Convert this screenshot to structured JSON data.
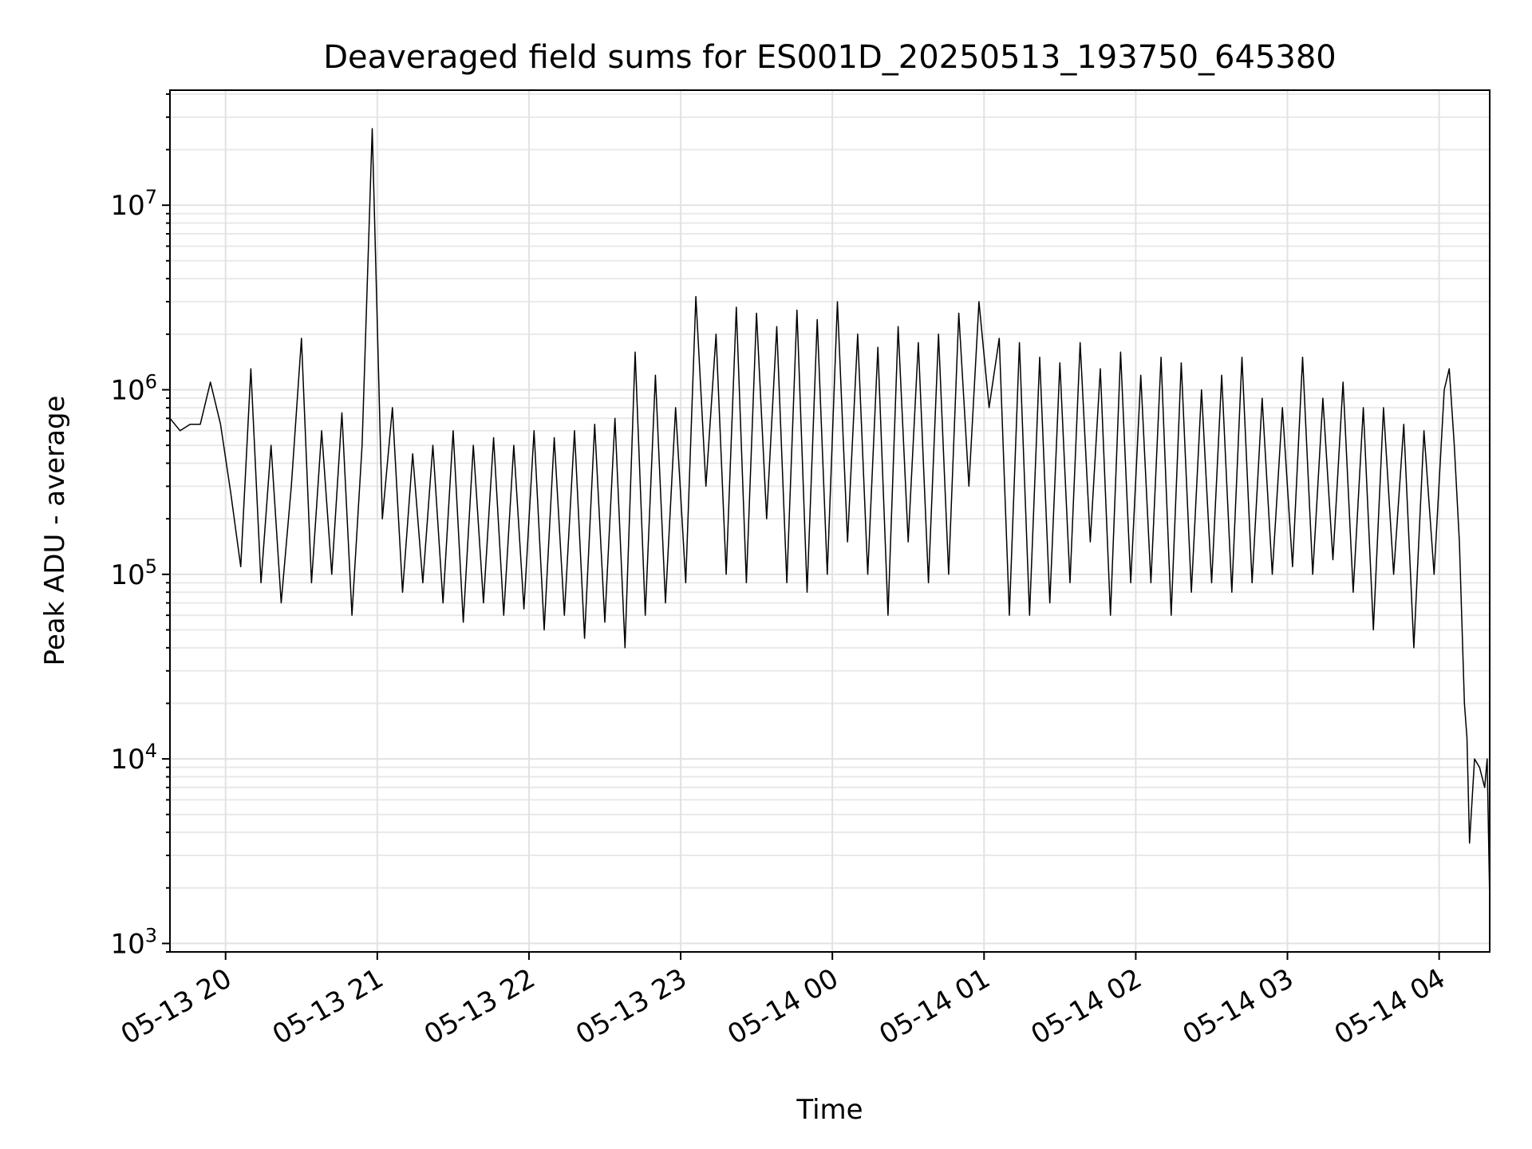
{
  "chart_data": {
    "type": "line",
    "title": "Deaveraged field sums for ES001D_20250513_193750_645380",
    "xlabel": "Time",
    "ylabel": "Peak ADU - average",
    "yscale": "log",
    "ylim": [
      900,
      42000000
    ],
    "xlim": [
      "2025-05-13 19:38",
      "2025-05-14 04:20"
    ],
    "grid": true,
    "legend": "none",
    "line_color": "#000000",
    "x_ticks": [
      {
        "value": "2025-05-13 20:00",
        "label": "05-13 20"
      },
      {
        "value": "2025-05-13 21:00",
        "label": "05-13 21"
      },
      {
        "value": "2025-05-13 22:00",
        "label": "05-13 22"
      },
      {
        "value": "2025-05-13 23:00",
        "label": "05-13 23"
      },
      {
        "value": "2025-05-14 00:00",
        "label": "05-14 00"
      },
      {
        "value": "2025-05-14 01:00",
        "label": "05-14 01"
      },
      {
        "value": "2025-05-14 02:00",
        "label": "05-14 02"
      },
      {
        "value": "2025-05-14 03:00",
        "label": "05-14 03"
      },
      {
        "value": "2025-05-14 04:00",
        "label": "05-14 04"
      }
    ],
    "y_ticks": [
      {
        "value": 1000,
        "base": "10",
        "exp": "3"
      },
      {
        "value": 10000,
        "base": "10",
        "exp": "4"
      },
      {
        "value": 100000,
        "base": "10",
        "exp": "5"
      },
      {
        "value": 1000000,
        "base": "10",
        "exp": "6"
      },
      {
        "value": 10000000,
        "base": "10",
        "exp": "7"
      }
    ],
    "series": [
      {
        "x": [
          "2025-05-13 19:38",
          "2025-05-13 19:42",
          "2025-05-13 19:46",
          "2025-05-13 19:50",
          "2025-05-13 19:54",
          "2025-05-13 19:58",
          "2025-05-13 20:02",
          "2025-05-13 20:06",
          "2025-05-13 20:10",
          "2025-05-13 20:14",
          "2025-05-13 20:18",
          "2025-05-13 20:22",
          "2025-05-13 20:26",
          "2025-05-13 20:30",
          "2025-05-13 20:34",
          "2025-05-13 20:38",
          "2025-05-13 20:42",
          "2025-05-13 20:46",
          "2025-05-13 20:50",
          "2025-05-13 20:54",
          "2025-05-13 20:58",
          "2025-05-13 21:02",
          "2025-05-13 21:06",
          "2025-05-13 21:10",
          "2025-05-13 21:14",
          "2025-05-13 21:18",
          "2025-05-13 21:22",
          "2025-05-13 21:26",
          "2025-05-13 21:30",
          "2025-05-13 21:34",
          "2025-05-13 21:38",
          "2025-05-13 21:42",
          "2025-05-13 21:46",
          "2025-05-13 21:50",
          "2025-05-13 21:54",
          "2025-05-13 21:58",
          "2025-05-13 22:02",
          "2025-05-13 22:06",
          "2025-05-13 22:10",
          "2025-05-13 22:14",
          "2025-05-13 22:18",
          "2025-05-13 22:22",
          "2025-05-13 22:26",
          "2025-05-13 22:30",
          "2025-05-13 22:34",
          "2025-05-13 22:38",
          "2025-05-13 22:42",
          "2025-05-13 22:46",
          "2025-05-13 22:50",
          "2025-05-13 22:54",
          "2025-05-13 22:58",
          "2025-05-13 23:02",
          "2025-05-13 23:06",
          "2025-05-13 23:10",
          "2025-05-13 23:14",
          "2025-05-13 23:18",
          "2025-05-13 23:22",
          "2025-05-13 23:26",
          "2025-05-13 23:30",
          "2025-05-13 23:34",
          "2025-05-13 23:38",
          "2025-05-13 23:42",
          "2025-05-13 23:46",
          "2025-05-13 23:50",
          "2025-05-13 23:54",
          "2025-05-13 23:58",
          "2025-05-14 00:02",
          "2025-05-14 00:06",
          "2025-05-14 00:10",
          "2025-05-14 00:14",
          "2025-05-14 00:18",
          "2025-05-14 00:22",
          "2025-05-14 00:26",
          "2025-05-14 00:30",
          "2025-05-14 00:34",
          "2025-05-14 00:38",
          "2025-05-14 00:42",
          "2025-05-14 00:46",
          "2025-05-14 00:50",
          "2025-05-14 00:54",
          "2025-05-14 00:58",
          "2025-05-14 01:02",
          "2025-05-14 01:06",
          "2025-05-14 01:10",
          "2025-05-14 01:14",
          "2025-05-14 01:18",
          "2025-05-14 01:22",
          "2025-05-14 01:26",
          "2025-05-14 01:30",
          "2025-05-14 01:34",
          "2025-05-14 01:38",
          "2025-05-14 01:42",
          "2025-05-14 01:46",
          "2025-05-14 01:50",
          "2025-05-14 01:54",
          "2025-05-14 01:58",
          "2025-05-14 02:02",
          "2025-05-14 02:06",
          "2025-05-14 02:10",
          "2025-05-14 02:14",
          "2025-05-14 02:18",
          "2025-05-14 02:22",
          "2025-05-14 02:26",
          "2025-05-14 02:30",
          "2025-05-14 02:34",
          "2025-05-14 02:38",
          "2025-05-14 02:42",
          "2025-05-14 02:46",
          "2025-05-14 02:50",
          "2025-05-14 02:54",
          "2025-05-14 02:58",
          "2025-05-14 03:02",
          "2025-05-14 03:06",
          "2025-05-14 03:10",
          "2025-05-14 03:14",
          "2025-05-14 03:18",
          "2025-05-14 03:22",
          "2025-05-14 03:26",
          "2025-05-14 03:30",
          "2025-05-14 03:34",
          "2025-05-14 03:38",
          "2025-05-14 03:42",
          "2025-05-14 03:46",
          "2025-05-14 03:50",
          "2025-05-14 03:54",
          "2025-05-14 03:58",
          "2025-05-14 04:02",
          "2025-05-14 04:04",
          "2025-05-14 04:06",
          "2025-05-14 04:08",
          "2025-05-14 04:10",
          "2025-05-14 04:11",
          "2025-05-14 04:12",
          "2025-05-14 04:14",
          "2025-05-14 04:16",
          "2025-05-14 04:18",
          "2025-05-14 04:19",
          "2025-05-14 04:20"
        ],
        "y": [
          700000,
          600000,
          650000,
          650000,
          1100000,
          650000,
          280000,
          110000,
          1300000,
          90000,
          500000,
          70000,
          300000,
          1900000,
          90000,
          600000,
          100000,
          750000,
          60000,
          500000,
          26000000,
          200000,
          800000,
          80000,
          450000,
          90000,
          500000,
          70000,
          600000,
          55000,
          500000,
          70000,
          550000,
          60000,
          500000,
          65000,
          600000,
          50000,
          550000,
          60000,
          600000,
          45000,
          650000,
          55000,
          700000,
          40000,
          1600000,
          60000,
          1200000,
          70000,
          800000,
          90000,
          3200000,
          300000,
          2000000,
          100000,
          2800000,
          90000,
          2600000,
          200000,
          2200000,
          90000,
          2700000,
          80000,
          2400000,
          100000,
          3000000,
          150000,
          2000000,
          100000,
          1700000,
          60000,
          2200000,
          150000,
          1800000,
          90000,
          2000000,
          100000,
          2600000,
          300000,
          3000000,
          800000,
          1900000,
          60000,
          1800000,
          60000,
          1500000,
          70000,
          1400000,
          90000,
          1800000,
          150000,
          1300000,
          60000,
          1600000,
          90000,
          1200000,
          90000,
          1500000,
          60000,
          1400000,
          80000,
          1000000,
          90000,
          1200000,
          80000,
          1500000,
          90000,
          900000,
          100000,
          800000,
          110000,
          1500000,
          100000,
          900000,
          120000,
          1100000,
          80000,
          800000,
          50000,
          800000,
          100000,
          650000,
          40000,
          600000,
          100000,
          1000000,
          1300000,
          500000,
          150000,
          20000,
          13000,
          3500,
          10000,
          9000,
          7000,
          10000,
          1700
        ]
      }
    ]
  }
}
